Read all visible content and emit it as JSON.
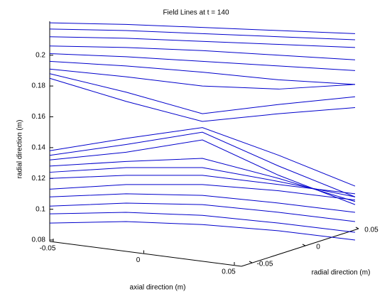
{
  "chart_data": {
    "type": "line",
    "title": "Field Lines at t = 140",
    "ylabel": "radial direction (m)",
    "xlabel": "axial direction (m)",
    "zlabel": "radial direction (m)",
    "color": "#0000cc",
    "x": [
      -0.05,
      -0.025,
      0,
      0.025,
      0.05
    ],
    "xlim": [
      -0.05,
      0.05
    ],
    "xticks": [
      -0.05,
      0,
      0.05
    ],
    "ylim": [
      0.08,
      0.222
    ],
    "yticks": [
      0.08,
      0.1,
      0.12,
      0.14,
      0.16,
      0.18,
      0.2
    ],
    "zlim": [
      -0.05,
      0.05
    ],
    "zticks": [
      -0.05,
      0,
      0.05
    ],
    "series": [
      {
        "values": [
          0.221,
          0.22,
          0.218,
          0.216,
          0.214
        ]
      },
      {
        "values": [
          0.217,
          0.216,
          0.214,
          0.212,
          0.21
        ]
      },
      {
        "values": [
          0.212,
          0.211,
          0.209,
          0.207,
          0.205
        ]
      },
      {
        "values": [
          0.206,
          0.205,
          0.203,
          0.2,
          0.197
        ]
      },
      {
        "values": [
          0.201,
          0.199,
          0.196,
          0.193,
          0.19
        ]
      },
      {
        "values": [
          0.196,
          0.193,
          0.189,
          0.184,
          0.181
        ]
      },
      {
        "values": [
          0.191,
          0.186,
          0.18,
          0.178,
          0.181
        ]
      },
      {
        "values": [
          0.188,
          0.176,
          0.162,
          0.168,
          0.173
        ]
      },
      {
        "values": [
          0.185,
          0.17,
          0.157,
          0.162,
          0.166
        ]
      },
      {
        "values": [
          0.138,
          0.146,
          0.153,
          0.135,
          0.115
        ]
      },
      {
        "values": [
          0.135,
          0.142,
          0.15,
          0.128,
          0.108
        ]
      },
      {
        "values": [
          0.132,
          0.137,
          0.145,
          0.122,
          0.103
        ]
      },
      {
        "values": [
          0.128,
          0.131,
          0.133,
          0.12,
          0.105
        ]
      },
      {
        "values": [
          0.124,
          0.127,
          0.127,
          0.118,
          0.108
        ]
      },
      {
        "values": [
          0.12,
          0.122,
          0.122,
          0.116,
          0.11
        ]
      },
      {
        "values": [
          0.113,
          0.116,
          0.116,
          0.112,
          0.106
        ]
      },
      {
        "values": [
          0.108,
          0.11,
          0.109,
          0.104,
          0.098
        ]
      },
      {
        "values": [
          0.102,
          0.104,
          0.103,
          0.098,
          0.092
        ]
      },
      {
        "values": [
          0.097,
          0.098,
          0.096,
          0.091,
          0.085
        ]
      },
      {
        "values": [
          0.091,
          0.092,
          0.09,
          0.086,
          0.08
        ]
      }
    ]
  }
}
